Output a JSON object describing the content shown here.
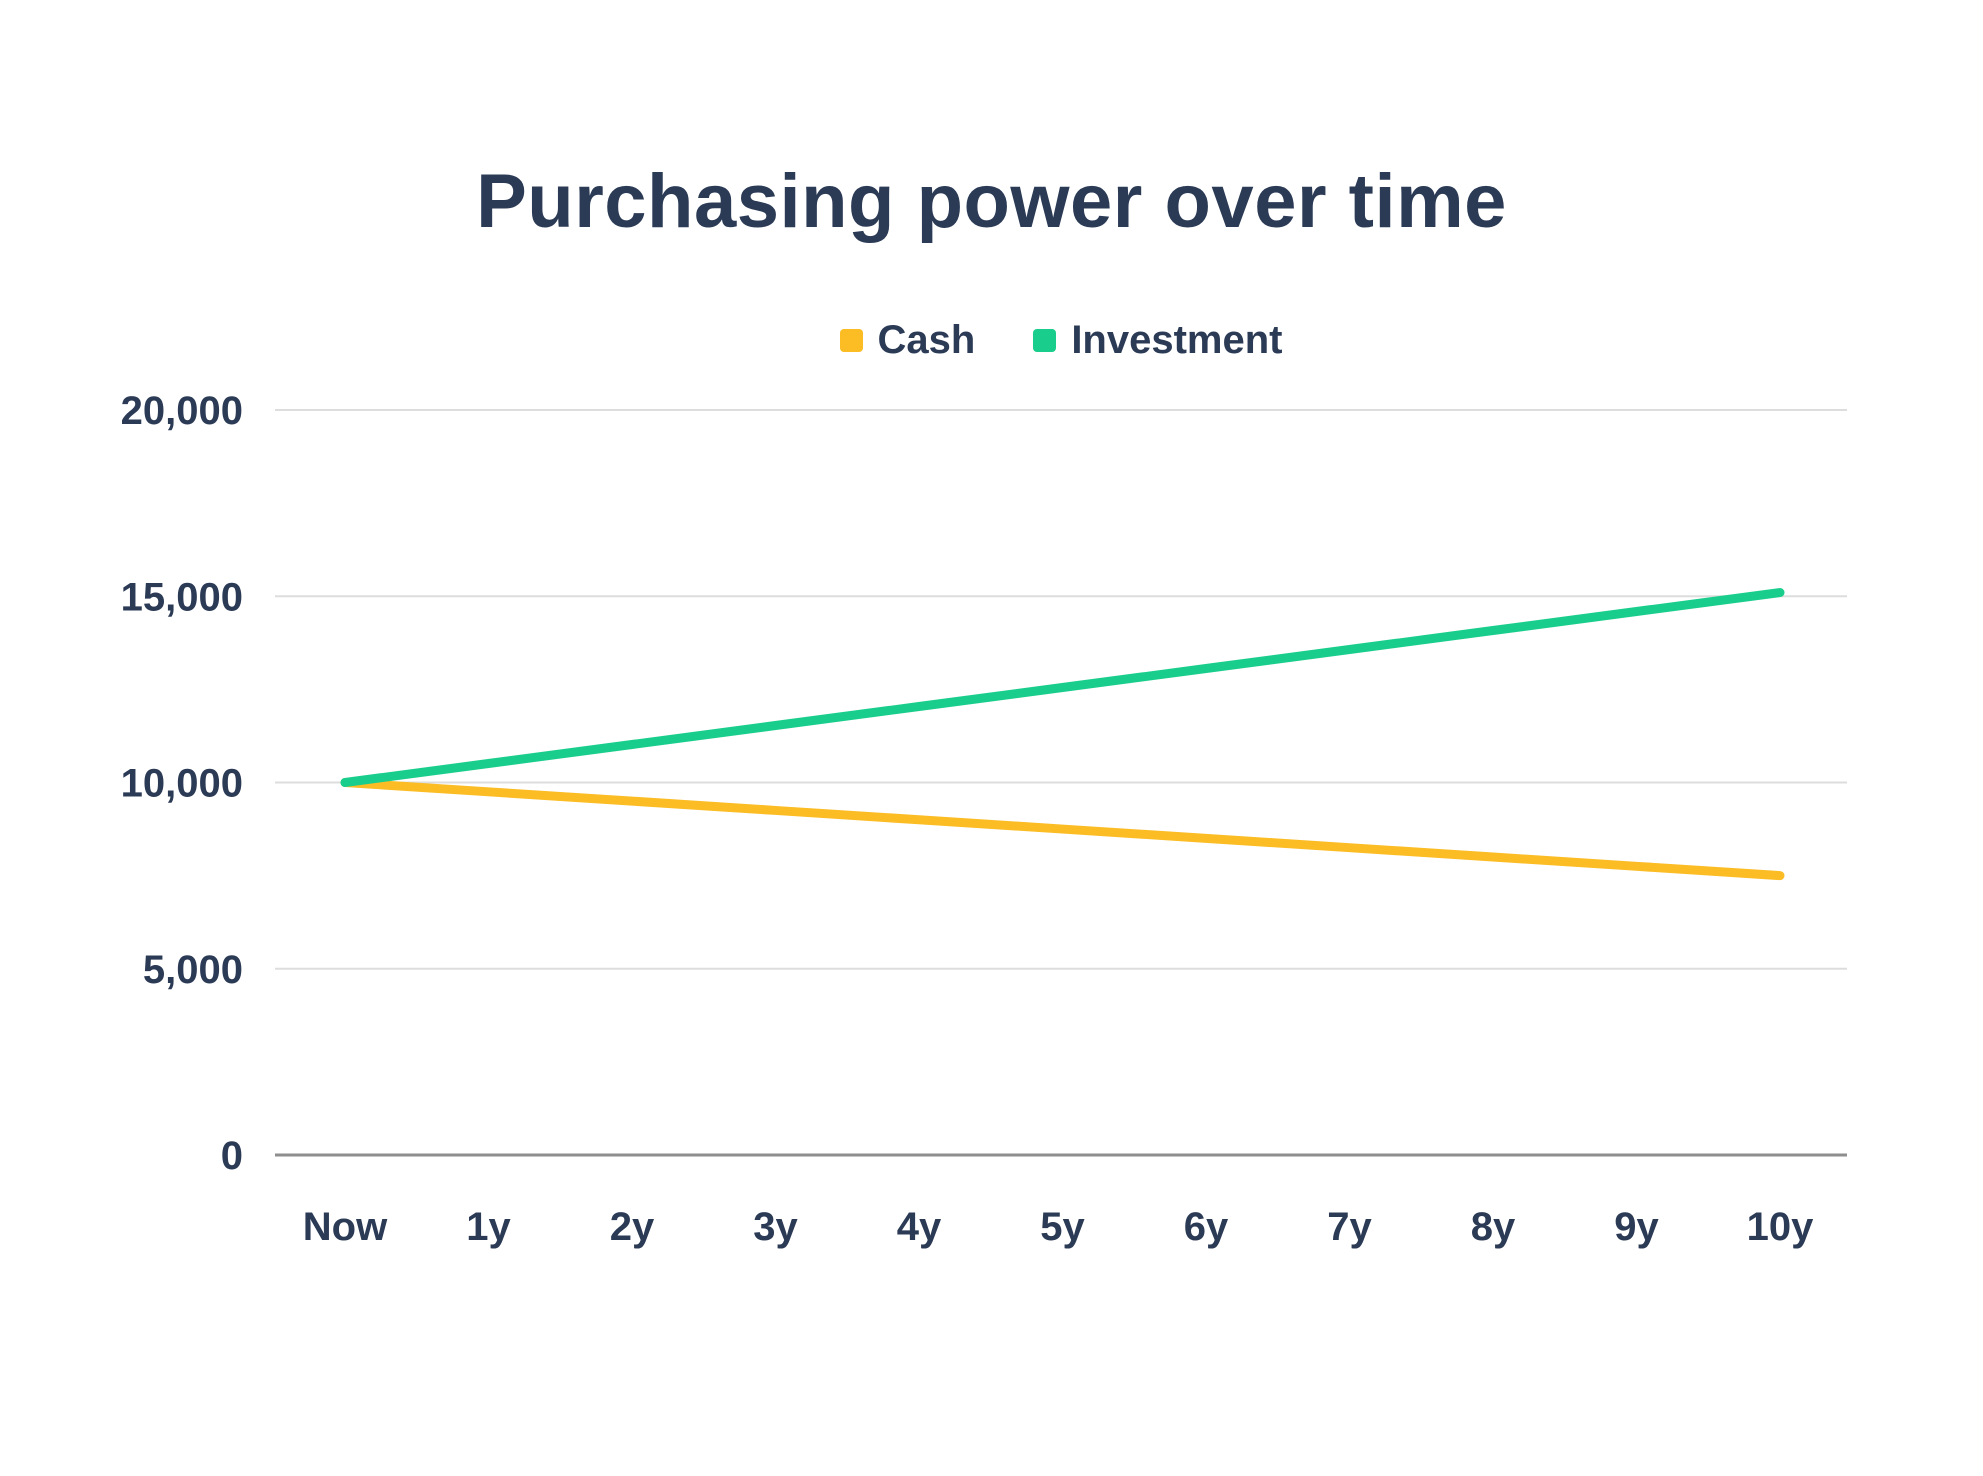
{
  "chart_data": {
    "type": "line",
    "title": "Purchasing power over time",
    "x": [
      "Now",
      "1y",
      "2y",
      "3y",
      "4y",
      "5y",
      "6y",
      "7y",
      "8y",
      "9y",
      "10y"
    ],
    "series": [
      {
        "name": "Cash",
        "color": "#fbbc24",
        "values": [
          10000,
          9750,
          9500,
          9250,
          9000,
          8750,
          8500,
          8250,
          8000,
          7750,
          7500
        ]
      },
      {
        "name": "Investment",
        "color": "#19ce8c",
        "values": [
          10000,
          10510,
          11020,
          11530,
          12040,
          12550,
          13060,
          13570,
          14080,
          14590,
          15100
        ]
      }
    ],
    "ylim": [
      0,
      20000
    ],
    "yticks": [
      0,
      5000,
      10000,
      15000,
      20000
    ],
    "ytick_labels": [
      "0",
      "5,000",
      "10,000",
      "15,000",
      "20,000"
    ],
    "xlabel": "",
    "ylabel": "",
    "grid": "horizontal-only",
    "legend_position": "top-center",
    "colors": {
      "title_text": "#2b3a55",
      "axis_label_text": "#2b3a55",
      "gridline": "#dddddd",
      "zero_axis_line": "#8e8e8e",
      "background": "#ffffff"
    }
  }
}
